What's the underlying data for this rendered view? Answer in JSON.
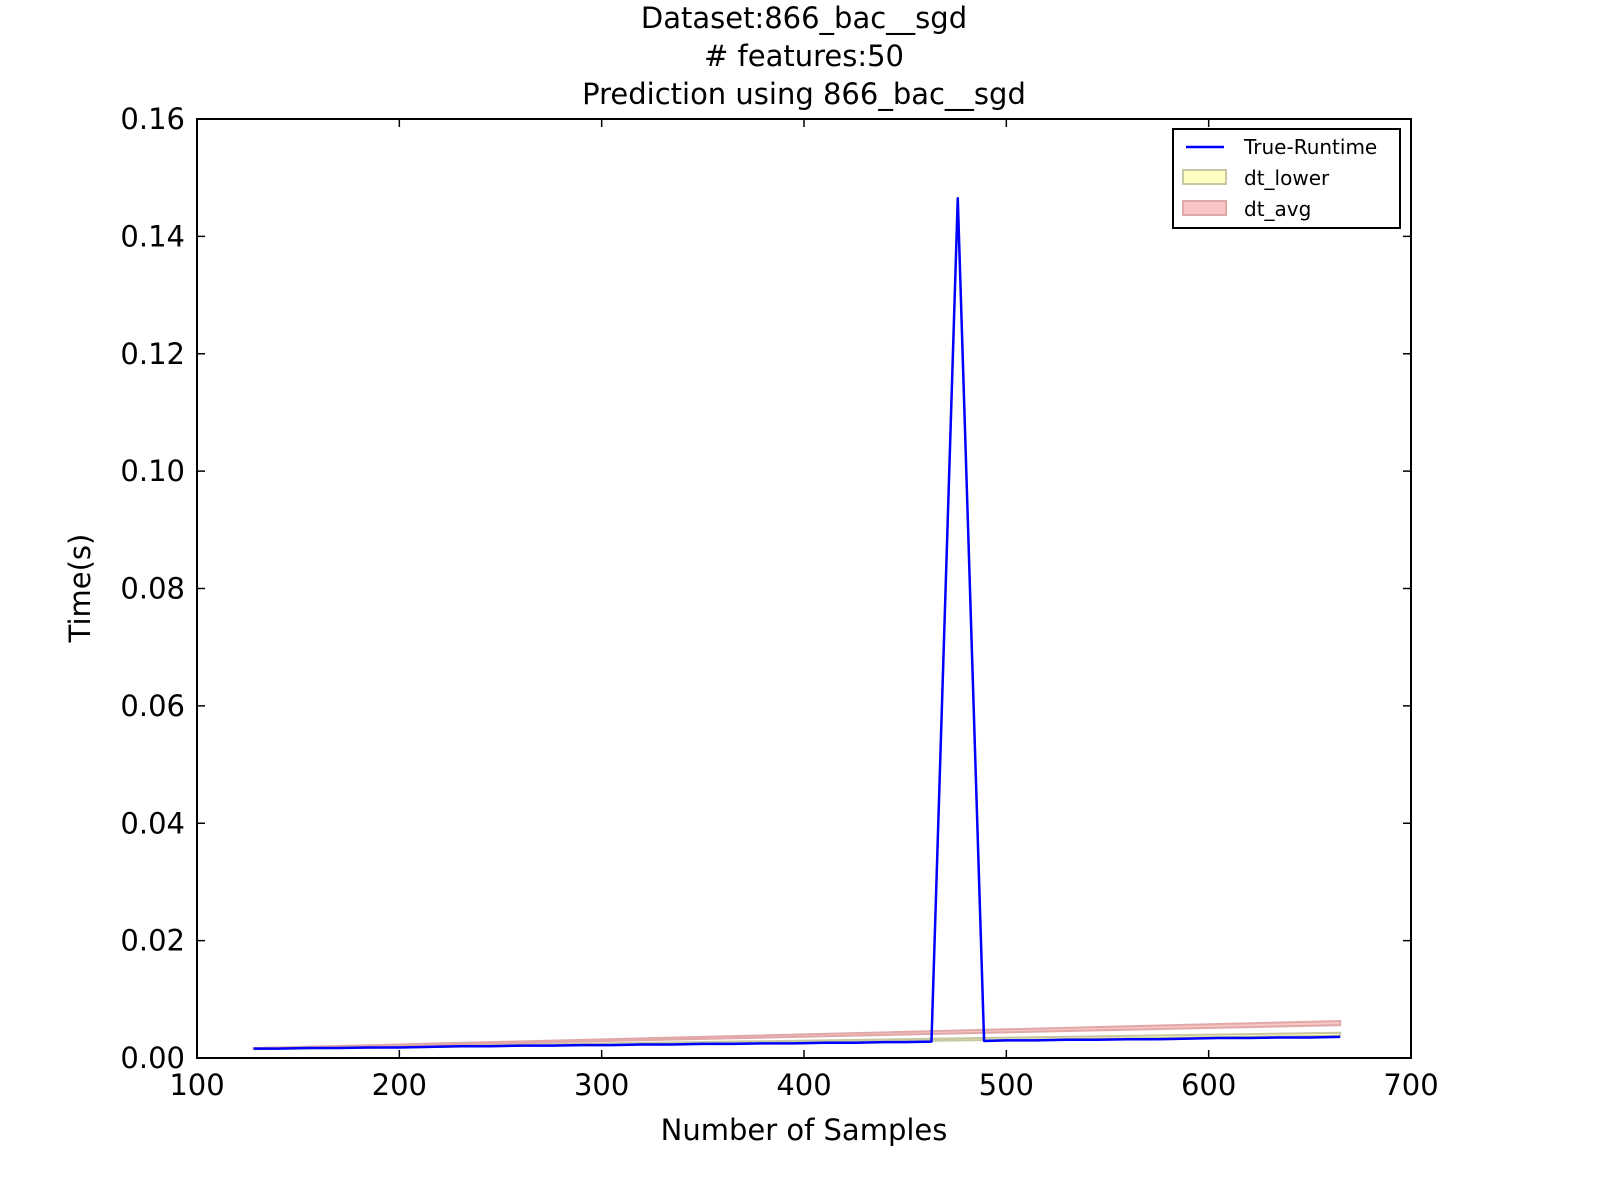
{
  "chart_data": {
    "type": "line",
    "title_lines": [
      "Dataset:866_bac__sgd",
      "# features:50",
      "Prediction using 866_bac__sgd"
    ],
    "xlabel": "Number of Samples",
    "ylabel": "Time(s)",
    "xlim": [
      100,
      700
    ],
    "ylim": [
      0,
      0.16
    ],
    "x_ticks": [
      100,
      200,
      300,
      400,
      500,
      600,
      700
    ],
    "x_tick_labels": [
      "100",
      "200",
      "300",
      "400",
      "500",
      "600",
      "700"
    ],
    "y_ticks": [
      0,
      0.02,
      0.04,
      0.06,
      0.08,
      0.1,
      0.12,
      0.14,
      0.16
    ],
    "y_tick_labels": [
      "0.00",
      "0.02",
      "0.04",
      "0.06",
      "0.08",
      "0.10",
      "0.12",
      "0.14",
      "0.16"
    ],
    "grid": false,
    "legend_position": "top-right",
    "series": [
      {
        "name": "True-Runtime",
        "kind": "line",
        "color": "#0000ff",
        "x": [
          128,
          140,
          155,
          170,
          185,
          200,
          215,
          230,
          245,
          260,
          275,
          290,
          305,
          320,
          335,
          350,
          365,
          380,
          395,
          410,
          425,
          440,
          450,
          463,
          476,
          489,
          500,
          515,
          530,
          545,
          560,
          575,
          590,
          605,
          620,
          635,
          650,
          665
        ],
        "y": [
          0.0016,
          0.0016,
          0.0017,
          0.0017,
          0.0018,
          0.0018,
          0.0019,
          0.002,
          0.002,
          0.0021,
          0.0021,
          0.0022,
          0.0022,
          0.0023,
          0.0023,
          0.0024,
          0.0024,
          0.0025,
          0.0025,
          0.0026,
          0.0026,
          0.0027,
          0.0027,
          0.0028,
          0.1465,
          0.0029,
          0.003,
          0.003,
          0.0031,
          0.0031,
          0.0032,
          0.0032,
          0.0033,
          0.0034,
          0.0034,
          0.0035,
          0.0035,
          0.0036
        ]
      },
      {
        "name": "dt_lower",
        "kind": "band",
        "color": "#ffff99",
        "edge_color": "#c8c8a0",
        "x": [
          128,
          665
        ],
        "lower": [
          0.0015,
          0.0038
        ],
        "upper": [
          0.0016,
          0.0043
        ]
      },
      {
        "name": "dt_avg",
        "kind": "band",
        "color": "#f5a0a0",
        "edge_color": "#e0a8a8",
        "x": [
          128,
          665
        ],
        "lower": [
          0.0016,
          0.0056
        ],
        "upper": [
          0.0017,
          0.0063
        ]
      }
    ]
  }
}
